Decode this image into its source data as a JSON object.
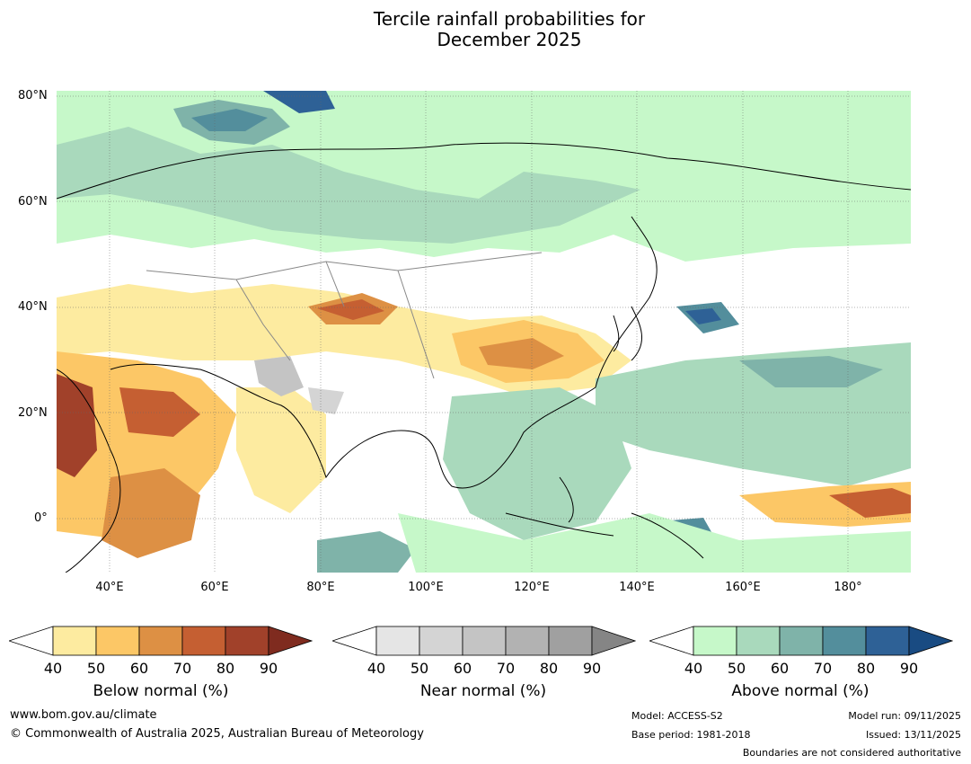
{
  "title": {
    "line1": "Tercile rainfall probabilities for",
    "line2": "December 2025"
  },
  "map": {
    "latitude_labels": [
      "80°N",
      "60°N",
      "40°N",
      "20°N",
      "0°"
    ],
    "longitude_labels": [
      "40°E",
      "60°E",
      "80°E",
      "100°E",
      "120°E",
      "140°E",
      "160°E",
      "180°"
    ],
    "palette": {
      "below": [
        "#fdeba0",
        "#fcc766",
        "#dd9044",
        "#c55f32",
        "#a1412a",
        "#7f2b1f"
      ],
      "near": [
        "#e5e5e5",
        "#d4d4d4",
        "#c4c4c4",
        "#b2b2b2",
        "#a0a0a0",
        "#858585"
      ],
      "above": [
        "#c6f8c9",
        "#a9d9bc",
        "#7fb3a9",
        "#538e9c",
        "#2e6196",
        "#194b82"
      ],
      "land_outline": "#000000",
      "boundary": "#888888"
    }
  },
  "colorbars": [
    {
      "name": "below",
      "label": "Below normal (%)",
      "ticks": [
        "40",
        "50",
        "60",
        "70",
        "80",
        "90"
      ]
    },
    {
      "name": "near",
      "label": "Near normal (%)",
      "ticks": [
        "40",
        "50",
        "60",
        "70",
        "80",
        "90"
      ]
    },
    {
      "name": "above",
      "label": "Above normal (%)",
      "ticks": [
        "40",
        "50",
        "60",
        "70",
        "80",
        "90"
      ]
    }
  ],
  "footer": {
    "website": "www.bom.gov.au/climate",
    "copyright": "© Commonwealth of Australia 2025, Australian Bureau of Meteorology",
    "model": "Model: ACCESS-S2",
    "base_period": "Base period: 1981-2018",
    "model_run": "Model run: 09/11/2025",
    "issued": "Issued: 13/11/2025",
    "disclaimer": "Boundaries are not considered authoritative"
  }
}
